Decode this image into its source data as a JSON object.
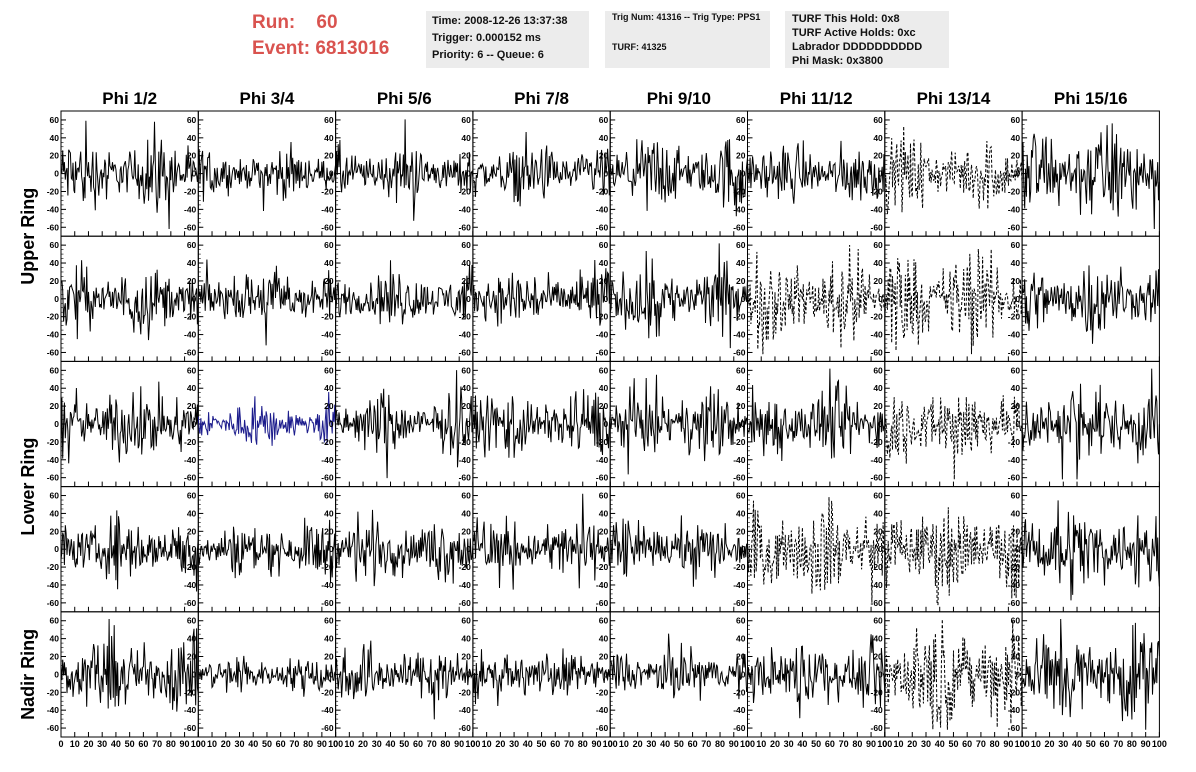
{
  "header": {
    "run_label": "Run:",
    "run_value": "60",
    "event_label": "Event:",
    "event_value": "6813016",
    "time_box": [
      "Time: 2008-12-26 13:37:38",
      "Trigger: 0.000152 ms",
      "Priority: 6 -- Queue: 6"
    ],
    "trig_box": [
      "Trig Num: 41316 -- Trig Type: PPS1",
      "TURF: 41325"
    ],
    "turf_box": [
      "TURF This Hold: 0x8",
      "TURF Active Holds: 0xc",
      "Labrador DDDDDDDDDD",
      "Phi Mask: 0x3800"
    ]
  },
  "chart_data": {
    "type": "line",
    "columns": [
      "Phi 1/2",
      "Phi 3/4",
      "Phi 5/6",
      "Phi 7/8",
      "Phi 9/10",
      "Phi 11/12",
      "Phi 13/14",
      "Phi 15/16"
    ],
    "row_groups": [
      {
        "label": "Upper Ring",
        "rows": [
          0,
          1
        ]
      },
      {
        "label": "Lower Ring",
        "rows": [
          2,
          3
        ]
      },
      {
        "label": "Nadir Ring",
        "rows": [
          4
        ]
      }
    ],
    "xlim": [
      0,
      100
    ],
    "x_ticks": [
      0,
      10,
      20,
      30,
      40,
      50,
      60,
      70,
      80,
      90,
      100
    ],
    "ylim": [
      -70,
      70
    ],
    "y_ticks": [
      -60,
      -40,
      -20,
      0,
      20,
      40,
      60
    ],
    "panels": [
      [
        {
          "amp": 30,
          "style": "solid",
          "color": "#000000"
        },
        {
          "amp": 20,
          "style": "solid",
          "color": "#000000"
        },
        {
          "amp": 24,
          "style": "solid",
          "color": "#000000"
        },
        {
          "amp": 24,
          "style": "solid",
          "color": "#000000"
        },
        {
          "amp": 30,
          "style": "solid",
          "color": "#000000"
        },
        {
          "amp": 24,
          "style": "solid",
          "color": "#000000"
        },
        {
          "amp": 28,
          "style": "dashed",
          "color": "#000000"
        },
        {
          "amp": 40,
          "style": "solid",
          "color": "#000000"
        }
      ],
      [
        {
          "amp": 28,
          "style": "solid",
          "color": "#000000"
        },
        {
          "amp": 26,
          "style": "solid",
          "color": "#000000"
        },
        {
          "amp": 24,
          "style": "solid",
          "color": "#000000"
        },
        {
          "amp": 26,
          "style": "solid",
          "color": "#000000"
        },
        {
          "amp": 30,
          "style": "solid",
          "color": "#000000"
        },
        {
          "amp": 36,
          "style": "dashed",
          "color": "#000000"
        },
        {
          "amp": 42,
          "style": "dashed",
          "color": "#000000"
        },
        {
          "amp": 32,
          "style": "solid",
          "color": "#000000"
        }
      ],
      [
        {
          "amp": 30,
          "style": "solid",
          "color": "#000000"
        },
        {
          "amp": 18,
          "style": "solid",
          "color": "#1c1c8c"
        },
        {
          "amp": 26,
          "style": "solid",
          "color": "#000000"
        },
        {
          "amp": 28,
          "style": "solid",
          "color": "#000000"
        },
        {
          "amp": 28,
          "style": "solid",
          "color": "#000000"
        },
        {
          "amp": 30,
          "style": "solid",
          "color": "#000000"
        },
        {
          "amp": 34,
          "style": "dashed",
          "color": "#000000"
        },
        {
          "amp": 36,
          "style": "solid",
          "color": "#000000"
        }
      ],
      [
        {
          "amp": 28,
          "style": "solid",
          "color": "#000000"
        },
        {
          "amp": 22,
          "style": "solid",
          "color": "#000000"
        },
        {
          "amp": 26,
          "style": "solid",
          "color": "#000000"
        },
        {
          "amp": 26,
          "style": "solid",
          "color": "#000000"
        },
        {
          "amp": 24,
          "style": "solid",
          "color": "#000000"
        },
        {
          "amp": 38,
          "style": "dashed",
          "color": "#000000"
        },
        {
          "amp": 40,
          "style": "dashed",
          "color": "#000000"
        },
        {
          "amp": 36,
          "style": "solid",
          "color": "#000000"
        }
      ],
      [
        {
          "amp": 32,
          "style": "solid",
          "color": "#000000"
        },
        {
          "amp": 16,
          "style": "solid",
          "color": "#000000"
        },
        {
          "amp": 24,
          "style": "solid",
          "color": "#000000"
        },
        {
          "amp": 18,
          "style": "solid",
          "color": "#000000"
        },
        {
          "amp": 22,
          "style": "solid",
          "color": "#000000"
        },
        {
          "amp": 30,
          "style": "solid",
          "color": "#000000"
        },
        {
          "amp": 44,
          "style": "dashed",
          "color": "#000000"
        },
        {
          "amp": 40,
          "style": "solid",
          "color": "#000000"
        }
      ]
    ],
    "colors": {
      "run_text": "#d9534f",
      "info_box_bg": "#ececec",
      "highlight_trace": "#1c1c8c"
    }
  }
}
